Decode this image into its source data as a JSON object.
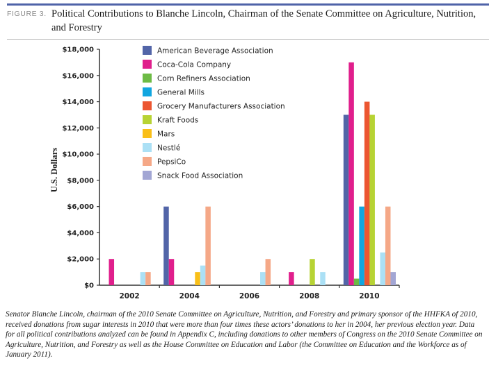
{
  "figure": {
    "label": "FIGURE 3.",
    "title": "Political Contributions to Blanche Lincoln, Chairman of the Senate Committee on Agriculture, Nutrition, and Forestry",
    "accent_color": "#4f63a8"
  },
  "caption": "Senator Blanche Lincoln, chairman of the 2010 Senate Committee on Agriculture, Nutrition, and Forestry and primary sponsor of the HHFKA of 2010, received donations from sugar interests in 2010 that were more than four times these actors’ donations to her in 2004, her previous election year. Data for all political contributions analyzed can be found in Appendix C, including donations to other members of Congress on the 2010 Senate Committee on Agriculture, Nutrition, and Forestry as well as the House Committee on Education and Labor (the Committee on Education and the Workforce as of January 2011).",
  "chart_data": {
    "type": "bar",
    "title": "Political Contributions to Blanche Lincoln, Chairman of the Senate Committee on Agriculture, Nutrition, and Forestry",
    "xlabel": "",
    "ylabel": "U.S. Dollars",
    "ylim": [
      0,
      18000
    ],
    "yticks": [
      0,
      2000,
      4000,
      6000,
      8000,
      10000,
      12000,
      14000,
      16000,
      18000
    ],
    "ytick_labels": [
      "$0",
      "$2,000",
      "$4,000",
      "$6,000",
      "$8,000",
      "$10,000",
      "$12,000",
      "$14,000",
      "$16,000",
      "$18,000"
    ],
    "categories": [
      "2002",
      "2004",
      "2006",
      "2008",
      "2010"
    ],
    "grid": false,
    "legend_position": "top-left inside",
    "series": [
      {
        "name": "American Beverage Association",
        "color": "#5265a8",
        "values": [
          0,
          6000,
          0,
          0,
          13000
        ]
      },
      {
        "name": "Coca-Cola Company",
        "color": "#e01f8c",
        "values": [
          2000,
          2000,
          0,
          1000,
          17000
        ]
      },
      {
        "name": "Corn Refiners Association",
        "color": "#6dbb45",
        "values": [
          0,
          0,
          0,
          0,
          500
        ]
      },
      {
        "name": "General Mills",
        "color": "#11a6e0",
        "values": [
          0,
          0,
          0,
          0,
          6000
        ]
      },
      {
        "name": "Grocery Manufacturers Association",
        "color": "#ec5631",
        "values": [
          0,
          0,
          0,
          0,
          14000
        ]
      },
      {
        "name": "Kraft Foods",
        "color": "#b7d334",
        "values": [
          0,
          0,
          0,
          2000,
          13000
        ]
      },
      {
        "name": "Mars",
        "color": "#f9bf18",
        "values": [
          0,
          1000,
          0,
          0,
          0
        ]
      },
      {
        "name": "Nestlé",
        "color": "#abe0f5",
        "values": [
          1000,
          1500,
          1000,
          1000,
          2500
        ]
      },
      {
        "name": "PepsiCo",
        "color": "#f5a887",
        "values": [
          1000,
          6000,
          2000,
          0,
          6000
        ]
      },
      {
        "name": "Snack Food Association",
        "color": "#a2a6d4",
        "values": [
          0,
          0,
          0,
          0,
          1000
        ]
      }
    ]
  }
}
